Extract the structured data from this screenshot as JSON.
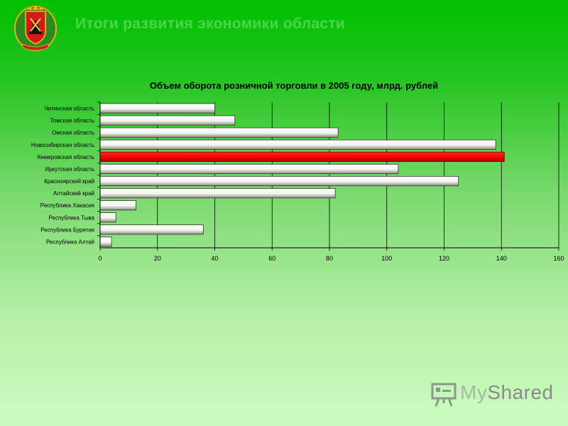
{
  "slide": {
    "title": "Итоги развития экономики области"
  },
  "watermark": {
    "text_a": "My",
    "text_b": "Shared"
  },
  "colors": {
    "bar_default": "#ffffff",
    "bar_highlight": "#ff0000",
    "title_color": "#4ad64a"
  },
  "chart_data": {
    "type": "bar",
    "orientation": "horizontal",
    "title": "Объем оборота розничной торговли в  2005 году, млрд. рублей",
    "categories": [
      "Читинская область",
      "Томская область",
      "Омская область",
      "Новосибирская область",
      "Кемеровская область",
      "Иркутская область",
      "Красноярский край",
      "Алтайский край",
      "Республика Хакасия",
      "Республика Тыва",
      "Республика Бурятия",
      "Республика Алтай"
    ],
    "values": [
      40,
      47,
      83,
      138,
      141,
      104,
      125,
      82,
      12.5,
      5.5,
      36,
      4
    ],
    "highlight_index": 4,
    "xlim": [
      0,
      160
    ],
    "xticks": [
      "0",
      "20",
      "40",
      "60",
      "80",
      "100",
      "120",
      "140",
      "160"
    ],
    "grid": true,
    "legend": "none"
  }
}
